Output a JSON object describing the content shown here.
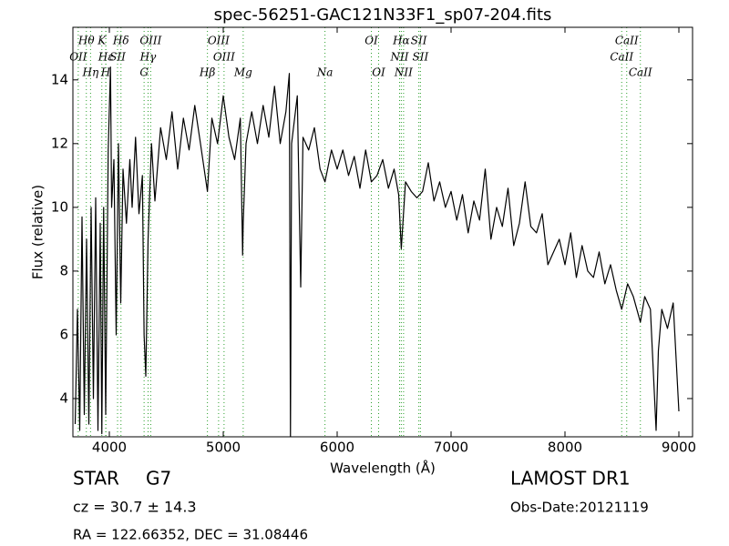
{
  "chart_data": {
    "type": "line",
    "title": "spec-56251-GAC121N33F1_sp07-204.fits",
    "xlabel": "Wavelength (Å)",
    "ylabel": "Flux (relative)",
    "xlim": [
      3680,
      9120
    ],
    "ylim": [
      2.8,
      15.65
    ],
    "xticks": [
      4000,
      5000,
      6000,
      7000,
      8000,
      9000
    ],
    "yticks": [
      4,
      6,
      8,
      10,
      12,
      14
    ],
    "x": [
      3700,
      3720,
      3740,
      3760,
      3780,
      3800,
      3820,
      3840,
      3860,
      3880,
      3900,
      3920,
      3934,
      3950,
      3968,
      3990,
      4010,
      4020,
      4040,
      4060,
      4080,
      4100,
      4120,
      4150,
      4180,
      4200,
      4230,
      4260,
      4290,
      4305,
      4320,
      4340,
      4370,
      4400,
      4450,
      4500,
      4550,
      4600,
      4650,
      4700,
      4750,
      4800,
      4861,
      4900,
      4950,
      5000,
      5050,
      5100,
      5150,
      5170,
      5175,
      5200,
      5250,
      5300,
      5350,
      5400,
      5450,
      5500,
      5550,
      5580,
      5590,
      5600,
      5650,
      5680,
      5700,
      5750,
      5800,
      5850,
      5893,
      5950,
      6000,
      6050,
      6100,
      6150,
      6200,
      6250,
      6300,
      6350,
      6400,
      6450,
      6500,
      6540,
      6563,
      6600,
      6650,
      6700,
      6750,
      6800,
      6850,
      6900,
      6950,
      7000,
      7050,
      7100,
      7150,
      7200,
      7250,
      7300,
      7350,
      7400,
      7450,
      7500,
      7550,
      7600,
      7650,
      7700,
      7750,
      7800,
      7850,
      7900,
      7950,
      8000,
      8050,
      8100,
      8150,
      8200,
      8250,
      8300,
      8350,
      8400,
      8450,
      8498,
      8550,
      8600,
      8662,
      8700,
      8750,
      8800,
      8820,
      8850,
      8900,
      8950,
      9000
    ],
    "series": [
      {
        "color": "#000000",
        "values": [
          3.2,
          6.8,
          3.0,
          9.7,
          3.5,
          9.0,
          3.2,
          10.0,
          4.0,
          10.3,
          3.0,
          9.5,
          2.9,
          10.0,
          3.5,
          11.8,
          14.4,
          10.0,
          11.5,
          6.0,
          12.0,
          7.0,
          11.2,
          9.5,
          11.5,
          10.0,
          12.2,
          9.8,
          11.0,
          6.0,
          4.7,
          9.0,
          12.0,
          10.2,
          12.5,
          11.5,
          13.0,
          11.2,
          12.8,
          11.8,
          13.2,
          12.0,
          10.5,
          12.8,
          12.0,
          13.5,
          12.2,
          11.5,
          12.8,
          8.5,
          9.5,
          12.0,
          13.0,
          12.0,
          13.2,
          12.2,
          13.8,
          12.0,
          13.0,
          14.2,
          2.8,
          12.0,
          13.5,
          7.5,
          12.2,
          11.8,
          12.5,
          11.2,
          10.8,
          11.8,
          11.2,
          11.8,
          11.0,
          11.6,
          10.6,
          11.8,
          10.8,
          11.0,
          11.5,
          10.6,
          11.2,
          10.4,
          8.7,
          10.8,
          10.5,
          10.3,
          10.5,
          11.4,
          10.2,
          10.8,
          10.0,
          10.5,
          9.6,
          10.4,
          9.2,
          10.2,
          9.6,
          11.2,
          9.0,
          10.0,
          9.4,
          10.6,
          8.8,
          9.5,
          10.8,
          9.4,
          9.2,
          9.8,
          8.2,
          8.6,
          9.0,
          8.2,
          9.2,
          7.8,
          8.8,
          8.0,
          7.8,
          8.6,
          7.6,
          8.2,
          7.4,
          6.8,
          7.6,
          7.2,
          6.4,
          7.2,
          6.8,
          3.0,
          5.5,
          6.8,
          6.2,
          7.0,
          3.6
        ]
      }
    ],
    "spectral_lines": {
      "color": "#2ca02c",
      "items": [
        {
          "label": "Hθ",
          "wavelength": 3798
        },
        {
          "label": "K",
          "wavelength": 3934
        },
        {
          "label": "Hδ",
          "wavelength": 4102
        },
        {
          "label": "OIII",
          "wavelength": 4363
        },
        {
          "label": "OIII",
          "wavelength": 4959
        },
        {
          "label": "OI",
          "wavelength": 6300
        },
        {
          "label": "Hα",
          "wavelength": 6563
        },
        {
          "label": "SII",
          "wavelength": 6717
        },
        {
          "label": "CaII",
          "wavelength": 8542
        },
        {
          "label": "OII",
          "wavelength": 3727
        },
        {
          "label": "Hε",
          "wavelength": 3970
        },
        {
          "label": "SII",
          "wavelength": 4072
        },
        {
          "label": "Hγ",
          "wavelength": 4340
        },
        {
          "label": "OIII",
          "wavelength": 5007
        },
        {
          "label": "NII",
          "wavelength": 6548
        },
        {
          "label": "SII",
          "wavelength": 6731
        },
        {
          "label": "CaII",
          "wavelength": 8498
        },
        {
          "label": "Hη",
          "wavelength": 3835
        },
        {
          "label": "H",
          "wavelength": 3968
        },
        {
          "label": "G",
          "wavelength": 4305
        },
        {
          "label": "Hβ",
          "wavelength": 4861
        },
        {
          "label": "Mg",
          "wavelength": 5175
        },
        {
          "label": "Na",
          "wavelength": 5893
        },
        {
          "label": "OI",
          "wavelength": 6364
        },
        {
          "label": "NII",
          "wavelength": 6583
        },
        {
          "label": "CaII",
          "wavelength": 8662
        }
      ]
    },
    "info": {
      "class": "STAR",
      "subclass": "G7",
      "cz": "cz = 30.7 ± 14.3",
      "coords": "RA = 122.66352, DEC = 31.08446",
      "release": "LAMOST DR1",
      "obs_date": "Obs-Date:20121119"
    }
  }
}
